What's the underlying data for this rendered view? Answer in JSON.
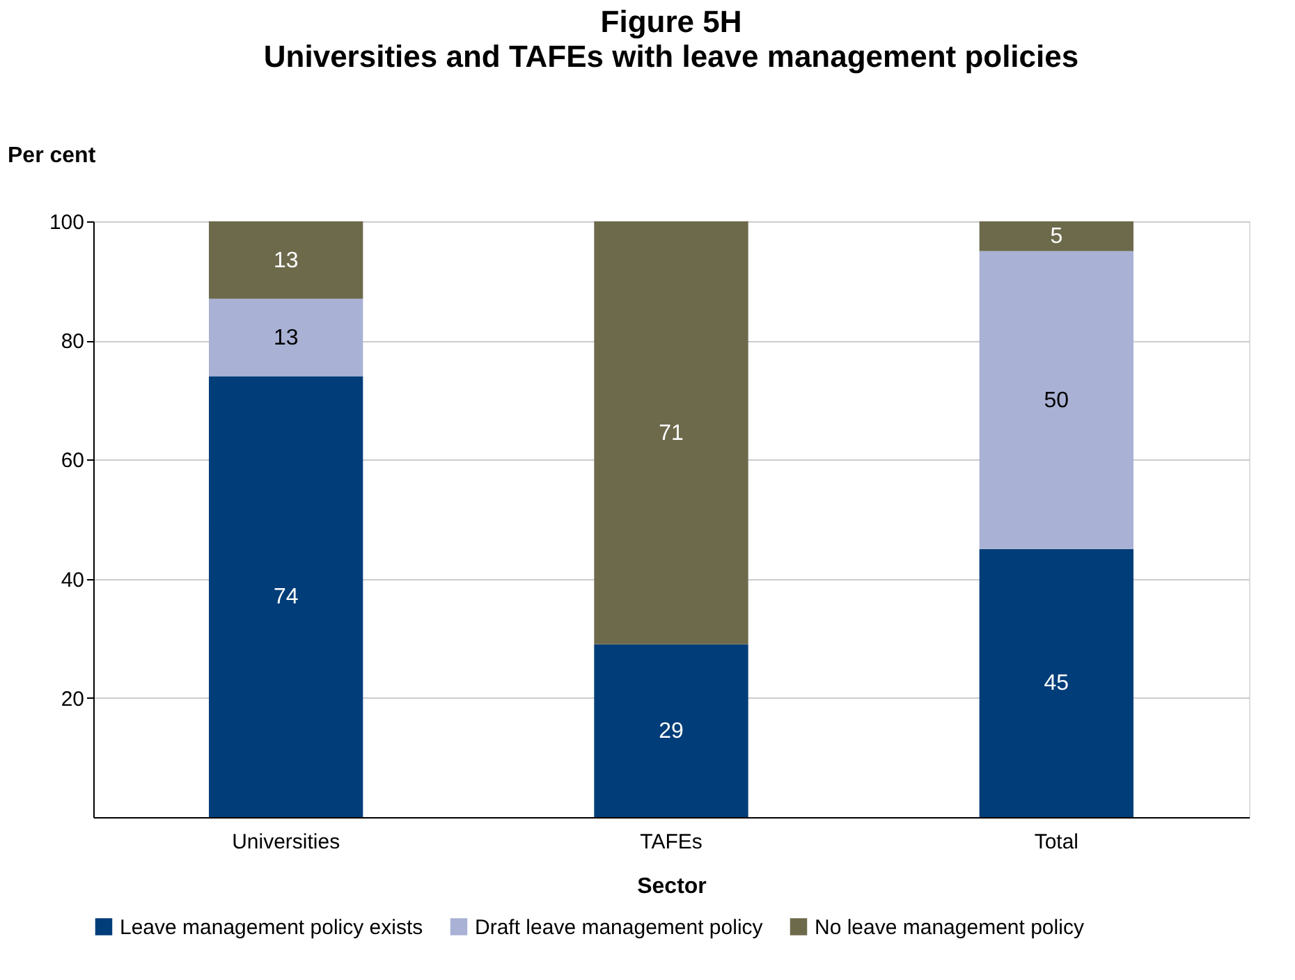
{
  "chart_data": {
    "type": "bar",
    "stacked": true,
    "title": "Figure 5H",
    "subtitle": "Universities and TAFEs with leave management policies",
    "xlabel": "Sector",
    "ylabel": "Per cent",
    "categories": [
      "Universities",
      "TAFEs",
      "Total"
    ],
    "series": [
      {
        "name": "Leave management policy exists",
        "color": "#003d79",
        "values": [
          74,
          29,
          45
        ],
        "value_labels": [
          "74",
          "29",
          "45"
        ]
      },
      {
        "name": "Draft leave management policy",
        "color": "#a9b1d5",
        "values": [
          13,
          0,
          50
        ],
        "value_labels": [
          "13",
          null,
          "50"
        ]
      },
      {
        "name": "No leave management policy",
        "color": "#6d6a4c",
        "values": [
          13,
          71,
          5
        ],
        "value_labels": [
          "13",
          "71",
          "5"
        ]
      }
    ],
    "ylim": [
      0,
      100
    ],
    "yticks": [
      20,
      40,
      60,
      80,
      100
    ],
    "grid": "y",
    "legend": "bottom"
  }
}
